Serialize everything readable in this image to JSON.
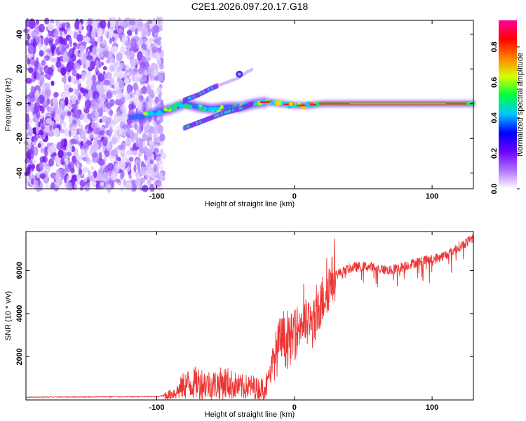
{
  "chart_data": [
    {
      "type": "heatmap",
      "title": "C2E1.2026.097.20.17.G18",
      "xlabel": "Height of straight line (km)",
      "ylabel": "Frequency (Hz)",
      "xlim": [
        -195,
        130
      ],
      "ylim": [
        -49,
        48
      ],
      "xticks": [
        -100,
        0,
        100
      ],
      "yticks": [
        -40,
        -20,
        0,
        20,
        40
      ],
      "noise_region_x": [
        -195,
        -100
      ],
      "traces": [
        {
          "name": "main-trace",
          "x": [
            -120,
            -110,
            -100,
            -90,
            -80,
            -70,
            -60,
            -50,
            -40,
            -30,
            -20,
            -10,
            0,
            10,
            20,
            40,
            60,
            80,
            100,
            130
          ],
          "y": [
            -8,
            -7,
            -5,
            -3,
            0,
            -2,
            -3,
            -2,
            -2,
            0,
            1,
            0,
            -1,
            -1,
            0,
            0,
            0,
            0,
            0,
            0
          ]
        },
        {
          "name": "lower-branch",
          "x": [
            -80,
            -70,
            -60,
            -50,
            -40,
            -30
          ],
          "y": [
            -14,
            -11,
            -8,
            -5,
            -3,
            0
          ]
        },
        {
          "name": "upper-branch",
          "x": [
            -80,
            -70,
            -60,
            -50,
            -40,
            -35,
            -30
          ],
          "y": [
            2,
            5,
            9,
            12,
            15,
            18,
            20
          ]
        }
      ],
      "colorbar": {
        "label": "Normalized spectral amplitude",
        "range": [
          0,
          0.95
        ],
        "ticks": [
          "0.0",
          "0.2",
          "0.4",
          "0.6",
          "0.8"
        ],
        "colors": [
          "#ffffff",
          "#b070ff",
          "#6a00ff",
          "#0000ff",
          "#00c8ff",
          "#00ff40",
          "#d8ff00",
          "#ff8000",
          "#ff0000",
          "#ff00a0"
        ]
      }
    },
    {
      "type": "line",
      "title": "",
      "xlabel": "Height of straight line (km)",
      "ylabel": "SNR (10 * v/v)",
      "xlim": [
        -195,
        130
      ],
      "ylim": [
        0,
        7800
      ],
      "xticks": [
        -100,
        0,
        100
      ],
      "yticks": [
        2000,
        4000,
        6000
      ],
      "series": [
        {
          "name": "SNR",
          "color": "#ee3333",
          "x": [
            -195,
            -150,
            -100,
            -95,
            -90,
            -85,
            -80,
            -70,
            -60,
            -50,
            -40,
            -30,
            -25,
            -20,
            -15,
            -10,
            -5,
            0,
            5,
            10,
            15,
            20,
            25,
            30,
            40,
            50,
            60,
            70,
            80,
            90,
            100,
            110,
            120,
            130
          ],
          "y": [
            130,
            140,
            150,
            200,
            250,
            400,
            700,
            800,
            700,
            800,
            600,
            600,
            500,
            700,
            1800,
            2800,
            2600,
            3000,
            3600,
            3500,
            3500,
            4600,
            5300,
            5800,
            6100,
            6200,
            6100,
            6000,
            6200,
            6400,
            6500,
            6700,
            7100,
            7500
          ]
        }
      ]
    }
  ]
}
